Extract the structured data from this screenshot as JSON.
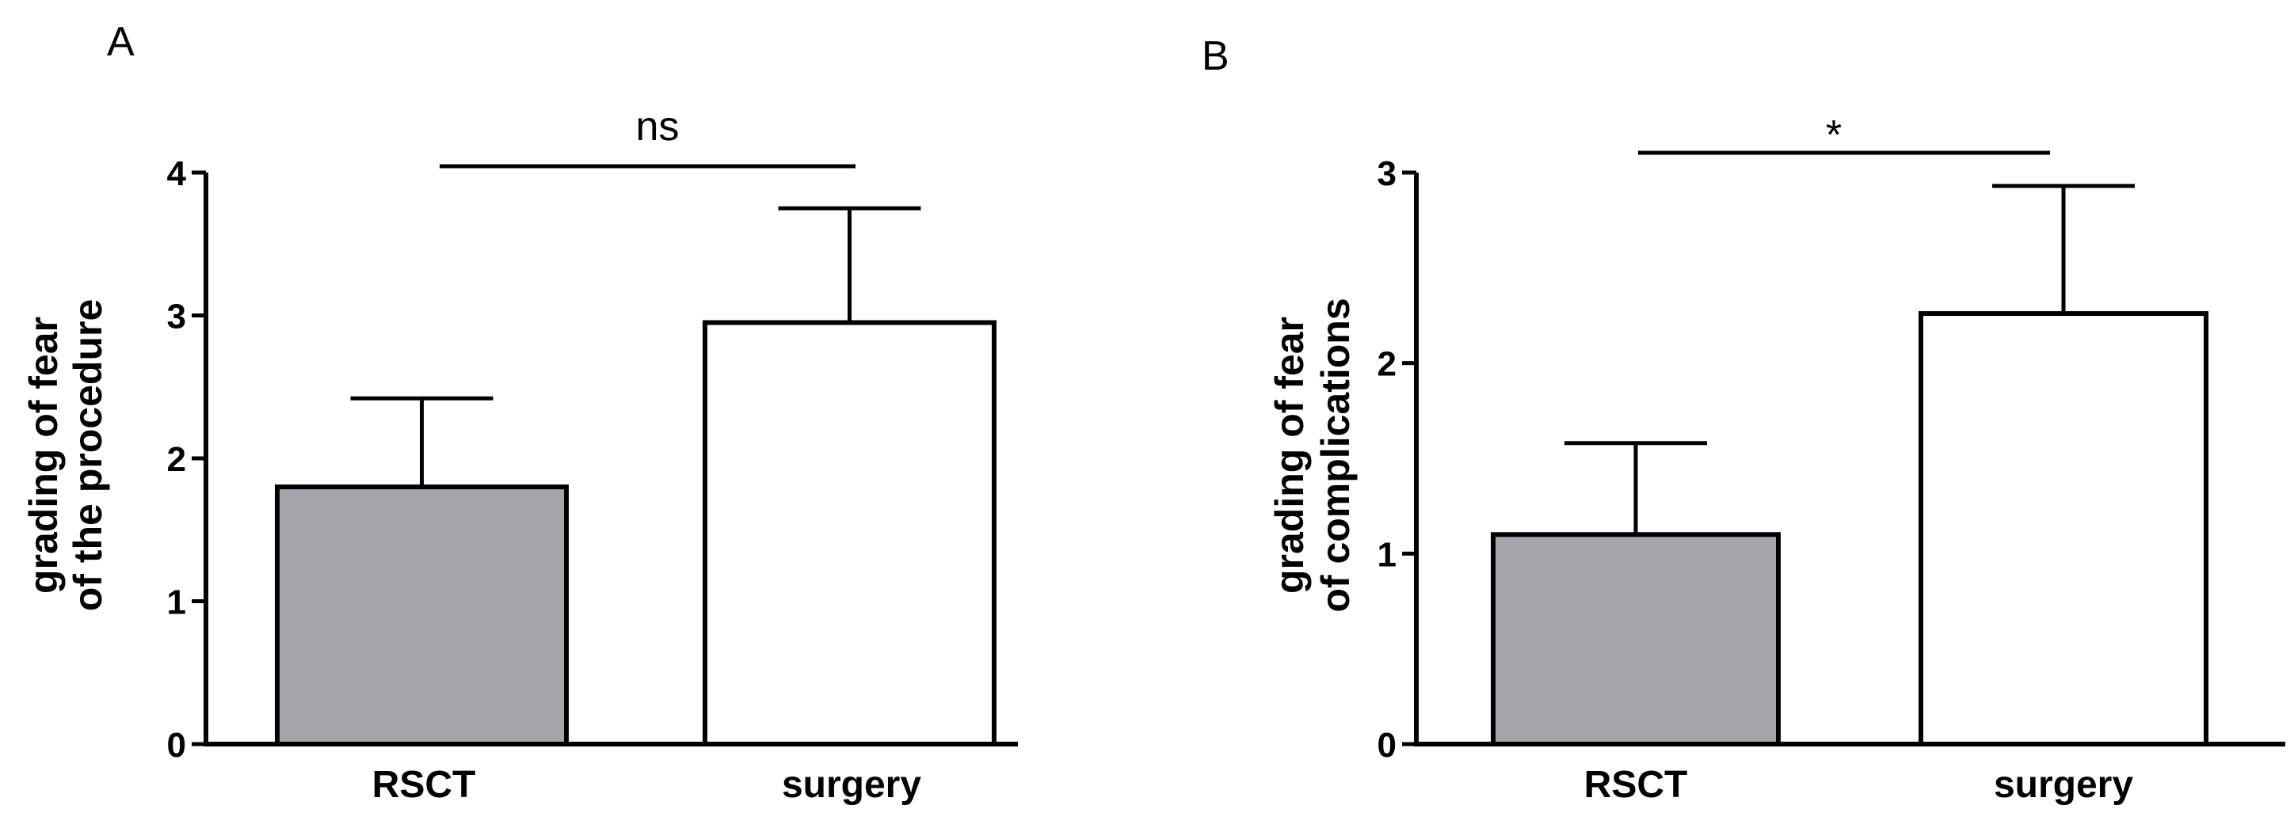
{
  "chart_data": [
    {
      "panel_label": "A",
      "type": "bar",
      "categories": [
        "RSCT",
        "surgery"
      ],
      "values": [
        1.8,
        2.95
      ],
      "error_upper": [
        0.62,
        0.8
      ],
      "ylabel": [
        "grading of fear",
        "of the procedure"
      ],
      "ylim": [
        0,
        4
      ],
      "yticks": [
        "0",
        "1",
        "2",
        "3",
        "4"
      ],
      "bar_colors": [
        "#a6a4ab",
        "#ffffff"
      ],
      "significance": "ns",
      "grid": false
    },
    {
      "panel_label": "B",
      "type": "bar",
      "categories": [
        "RSCT",
        "surgery"
      ],
      "values": [
        1.1,
        2.26
      ],
      "error_upper": [
        0.48,
        0.67
      ],
      "ylabel": [
        "grading of fear",
        "of complications"
      ],
      "ylim": [
        0,
        3
      ],
      "yticks": [
        "0",
        "1",
        "2",
        "3"
      ],
      "bar_colors": [
        "#a6a4ab",
        "#ffffff"
      ],
      "significance": "*",
      "grid": false
    }
  ]
}
